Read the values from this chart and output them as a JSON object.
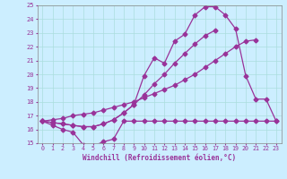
{
  "xlabel": "Windchill (Refroidissement éolien,°C)",
  "bg_color": "#cceeff",
  "line_color": "#993399",
  "grid_color": "#aadddd",
  "x_values": [
    0,
    1,
    2,
    3,
    4,
    5,
    6,
    7,
    8,
    9,
    10,
    11,
    12,
    13,
    14,
    15,
    16,
    17,
    18,
    19,
    20,
    21,
    22,
    23
  ],
  "line_flat": [
    16.6,
    16.3,
    16.0,
    15.8,
    14.9,
    14.8,
    15.1,
    15.3,
    16.6,
    16.6,
    16.6,
    16.6,
    16.6,
    16.6,
    16.6,
    16.6,
    16.6,
    16.6,
    16.6,
    16.6,
    16.6,
    16.6,
    16.6,
    16.6
  ],
  "line_diag": [
    16.6,
    16.7,
    16.8,
    17.0,
    17.1,
    17.2,
    17.4,
    17.6,
    17.8,
    18.0,
    18.3,
    18.6,
    18.9,
    19.2,
    19.6,
    20.0,
    20.5,
    21.0,
    21.5,
    22.0,
    22.4,
    22.5,
    null,
    null
  ],
  "line_peak1": [
    16.6,
    16.5,
    16.4,
    16.3,
    16.2,
    16.2,
    16.4,
    16.7,
    17.2,
    17.8,
    18.5,
    19.3,
    20.0,
    20.8,
    21.5,
    22.2,
    22.8,
    23.2,
    null,
    null,
    null,
    null,
    null,
    null
  ],
  "line_peak2": [
    16.6,
    16.5,
    16.4,
    16.3,
    16.2,
    16.2,
    16.4,
    16.7,
    17.2,
    17.8,
    19.9,
    21.2,
    20.8,
    22.4,
    22.9,
    24.3,
    24.9,
    24.9,
    24.3,
    23.3,
    19.9,
    18.2,
    18.2,
    16.6
  ],
  "ylim": [
    15,
    25
  ],
  "xlim": [
    -0.5,
    23.5
  ],
  "yticks": [
    15,
    16,
    17,
    18,
    19,
    20,
    21,
    22,
    23,
    24,
    25
  ]
}
